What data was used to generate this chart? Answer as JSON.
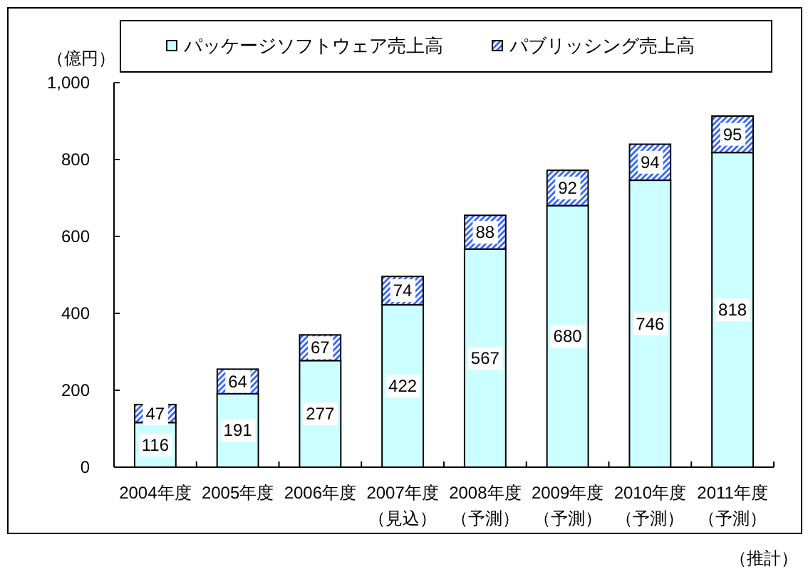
{
  "chart_data": {
    "type": "bar",
    "stacked": true,
    "categories": [
      "2004年度",
      "2005年度",
      "2006年度",
      "2007年度（見込）",
      "2008年度（予測）",
      "2009年度（予測）",
      "2010年度（予測）",
      "2011年度（予測）"
    ],
    "series": [
      {
        "name": "パッケージソフトウェア売上高",
        "color": "#ccffff",
        "values": [
          116,
          191,
          277,
          422,
          567,
          680,
          746,
          818
        ]
      },
      {
        "name": "パブリッシング売上高",
        "color": "#3366ff",
        "values": [
          47,
          64,
          67,
          74,
          88,
          92,
          94,
          95
        ]
      }
    ],
    "ylabel": "（億円）",
    "ylim": [
      0,
      1000
    ],
    "yticks": [
      0,
      200,
      400,
      600,
      800,
      {
        "value": 1000,
        "label": "1,000"
      }
    ],
    "data_labels": true,
    "legend": "top",
    "annotations": [
      "（推計）"
    ]
  }
}
